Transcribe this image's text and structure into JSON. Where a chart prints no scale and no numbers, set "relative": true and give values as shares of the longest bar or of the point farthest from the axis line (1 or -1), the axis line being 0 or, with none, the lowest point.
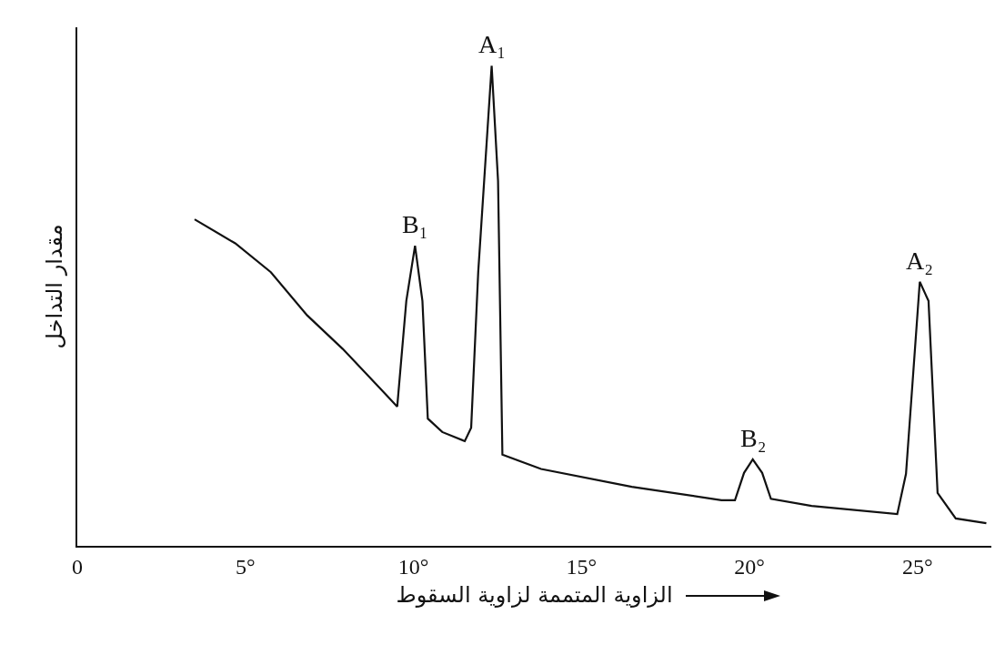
{
  "chart_data": {
    "type": "line",
    "relative": true,
    "xlabel": "الزاوية المتممة لزاوية السقوط",
    "ylabel": "مقدار التداخل",
    "xlim": [
      0,
      27.2
    ],
    "xticks": [
      0,
      {
        "value": 5,
        "label": "5°"
      },
      {
        "value": 10,
        "label": "10°"
      },
      {
        "value": 15,
        "label": "15°"
      },
      {
        "value": 20,
        "label": "20°"
      },
      {
        "value": 25,
        "label": "25°"
      }
    ],
    "grid": false,
    "marker": "none",
    "line_style": "solid",
    "tick_labels": "x",
    "series": [
      {
        "color": "#111111",
        "x": [
          3.49,
          4.7,
          5.76,
          6.84,
          7.9,
          8.98,
          9.52,
          9.79,
          10.05,
          10.27,
          10.43,
          10.86,
          11.53,
          11.72,
          11.93,
          12.33,
          12.52,
          12.65,
          13.8,
          16.5,
          19.17,
          19.57,
          19.84,
          20.1,
          20.38,
          20.64,
          21.85,
          24.4,
          24.66,
          25.07,
          25.33,
          25.6,
          26.14,
          27.05
        ],
        "values": [
          0.68,
          0.63,
          0.57,
          0.48,
          0.41,
          0.33,
          0.29,
          0.51,
          0.625,
          0.51,
          0.265,
          0.237,
          0.218,
          0.246,
          0.57,
          1.0,
          0.76,
          0.19,
          0.16,
          0.123,
          0.095,
          0.095,
          0.152,
          0.18,
          0.152,
          0.098,
          0.083,
          0.066,
          0.15,
          0.55,
          0.51,
          0.11,
          0.057,
          0.047
        ]
      }
    ],
    "annotations": [
      {
        "text": "A₁",
        "x": 12.33,
        "y": 1.0
      },
      {
        "text": "B₁",
        "x": 10.05,
        "y": 0.625
      },
      {
        "text": "B₂",
        "x": 20.1,
        "y": 0.18
      },
      {
        "text": "A₂",
        "x": 25.07,
        "y": 0.55
      }
    ]
  }
}
